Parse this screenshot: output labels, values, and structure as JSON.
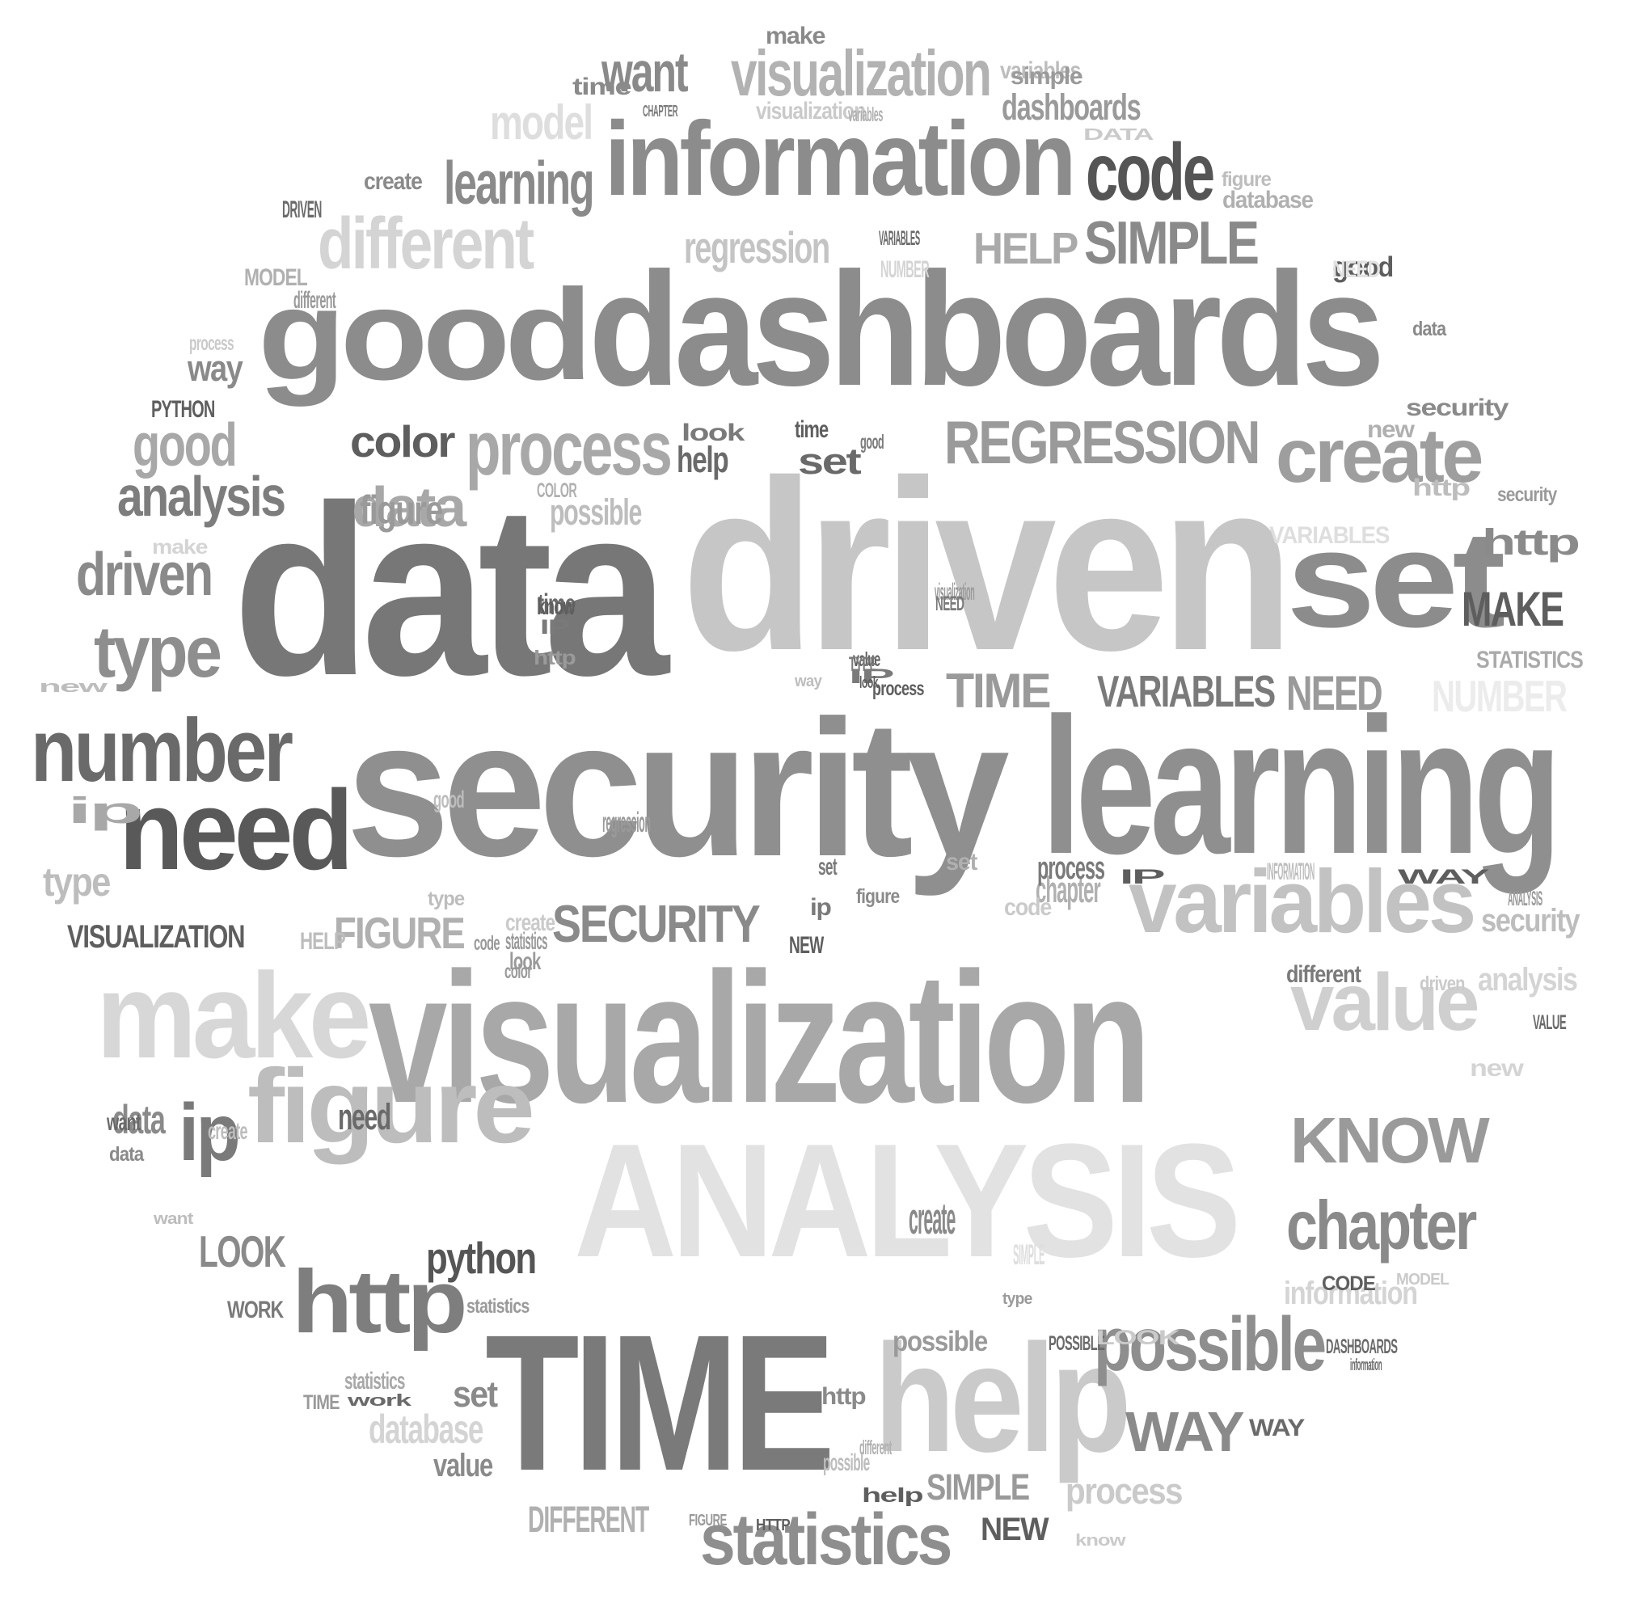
{
  "words": [
    {
      "text": "good",
      "color": "#8c8c8c"
    },
    {
      "text": "dashboards",
      "color": "#8c8c8c"
    },
    {
      "text": "data",
      "color": "#777777"
    },
    {
      "text": "driven",
      "color": "#c6c6c6"
    },
    {
      "text": "security",
      "color": "#8f8f8f"
    },
    {
      "text": "learning",
      "color": "#8f8f8f"
    },
    {
      "text": "visualization",
      "color": "#a8a8a8"
    },
    {
      "text": "ANALYSIS",
      "color": "#e2e2e2"
    },
    {
      "text": "TIME",
      "color": "#7a7a7a"
    },
    {
      "text": "help",
      "color": "#cacaca"
    },
    {
      "text": "information",
      "color": "#8c8c8c"
    },
    {
      "text": "set",
      "color": "#8c8c8c"
    },
    {
      "text": "make",
      "color": "#d7d7d7"
    },
    {
      "text": "figure",
      "color": "#bdbdbd"
    },
    {
      "text": "need",
      "color": "#595959"
    },
    {
      "text": "number",
      "color": "#6a6a6a"
    },
    {
      "text": "variables",
      "color": "#c2c2c2"
    },
    {
      "text": "value",
      "color": "#cfcfcf"
    },
    {
      "text": "http",
      "color": "#7e7e7e"
    },
    {
      "text": "create",
      "color": "#9e9e9e"
    },
    {
      "text": "different",
      "color": "#d4d4d4"
    },
    {
      "text": "process",
      "color": "#a8a8a8"
    },
    {
      "text": "REGRESSION",
      "color": "#9a9a9a"
    },
    {
      "text": "code",
      "color": "#555555"
    },
    {
      "text": "statistics",
      "color": "#8e8e8e"
    },
    {
      "text": "possible",
      "color": "#8e8e8e"
    },
    {
      "text": "KNOW",
      "color": "#9a9a9a"
    },
    {
      "text": "chapter",
      "color": "#8a8a8a"
    },
    {
      "text": "ip",
      "color": "#7a7a7a"
    },
    {
      "text": "type",
      "color": "#8e8e8e"
    },
    {
      "text": "visualization",
      "color": "#b2b2b2"
    },
    {
      "text": "SIMPLE",
      "color": "#8a8a8a"
    },
    {
      "text": "learning",
      "color": "#8a8a8a"
    },
    {
      "text": "driven",
      "color": "#8a8a8a"
    },
    {
      "text": "analysis",
      "color": "#7d7d7d"
    },
    {
      "text": "WAY",
      "color": "#8a8a8a"
    },
    {
      "text": "SECURITY",
      "color": "#8a8a8a"
    },
    {
      "text": "VARIABLES",
      "color": "#7a7a7a"
    },
    {
      "text": "good",
      "color": "#a8a8a8"
    },
    {
      "text": "data",
      "color": "#a8a8a8"
    },
    {
      "text": "want",
      "color": "#8a8a8a"
    },
    {
      "text": "regression",
      "color": "#c4c4c4"
    },
    {
      "text": "model",
      "color": "#dedede"
    },
    {
      "text": "dashboards",
      "color": "#9a9a9a"
    },
    {
      "text": "MAKE",
      "color": "#5e5e5e"
    },
    {
      "text": "NEED",
      "color": "#9a9a9a"
    },
    {
      "text": "TIME",
      "color": "#9a9a9a"
    },
    {
      "text": "HELP",
      "color": "#aaaaaa"
    },
    {
      "text": "FIGURE",
      "color": "#b0b0b0"
    },
    {
      "text": "python",
      "color": "#555555"
    },
    {
      "text": "LOOK",
      "color": "#8a8a8a"
    },
    {
      "text": "DIFFERENT",
      "color": "#b0b0b0"
    },
    {
      "text": "NUMBER",
      "color": "#ececec"
    },
    {
      "text": "VISUALIZATION",
      "color": "#5e5e5e"
    },
    {
      "text": "http",
      "color": "#8a8a8a"
    },
    {
      "text": "database",
      "color": "#d4d4d4"
    },
    {
      "text": "process",
      "color": "#cacaca"
    },
    {
      "text": "information",
      "color": "#d4d4d4"
    },
    {
      "text": "SIMPLE",
      "color": "#9a9a9a"
    },
    {
      "text": "NEW",
      "color": "#5e5e5e"
    },
    {
      "text": "chapter",
      "color": "#b0b0b0"
    },
    {
      "text": "color",
      "color": "#5e5e5e"
    },
    {
      "text": "create",
      "color": "#8a8a8a"
    },
    {
      "text": "ip",
      "color": "#a8a8a8"
    },
    {
      "text": "type",
      "color": "#bdbdbd"
    },
    {
      "text": "figure",
      "color": "#9a9a9a"
    },
    {
      "text": "data",
      "color": "#8a8a8a"
    },
    {
      "text": "need",
      "color": "#6a6a6a"
    },
    {
      "text": "set",
      "color": "#8a8a8a"
    },
    {
      "text": "value",
      "color": "#8a8a8a"
    },
    {
      "text": "possible",
      "color": "#9a9a9a"
    },
    {
      "text": "process",
      "color": "#7a7a7a"
    },
    {
      "text": "security",
      "color": "#bdbdbd"
    },
    {
      "text": "analysis",
      "color": "#d4d4d4"
    },
    {
      "text": "STATISTICS",
      "color": "#aaaaaa"
    },
    {
      "text": "VARIABLES",
      "color": "#dedede"
    },
    {
      "text": "help",
      "color": "#6a6a6a"
    },
    {
      "text": "way",
      "color": "#8a8a8a"
    },
    {
      "text": "set",
      "color": "#6a6a6a"
    },
    {
      "text": "possible",
      "color": "#bdbdbd"
    },
    {
      "text": "statistics",
      "color": "#a8a8a8"
    },
    {
      "text": "time",
      "color": "#6a6a6a"
    },
    {
      "text": "different",
      "color": "#7a7a7a"
    },
    {
      "text": "database",
      "color": "#b0b0b0"
    },
    {
      "text": "variables",
      "color": "#bdbdbd"
    },
    {
      "text": "visualization",
      "color": "#cacaca"
    },
    {
      "text": "security",
      "color": "#8a8a8a"
    },
    {
      "text": "create",
      "color": "#8a8a8a"
    },
    {
      "text": "good",
      "color": "#5e5e5e"
    },
    {
      "text": "http",
      "color": "#bdbdbd"
    },
    {
      "text": "security",
      "color": "#9a9a9a"
    },
    {
      "text": "visualization",
      "color": "#9a9a9a"
    },
    {
      "text": "value",
      "color": "#5e5e5e"
    },
    {
      "text": "know",
      "color": "#5e5e5e"
    },
    {
      "text": "IP",
      "color": "#7a7a7a"
    },
    {
      "text": "look",
      "color": "#7a7a7a"
    },
    {
      "text": "time",
      "color": "#5e5e5e"
    },
    {
      "text": "new",
      "color": "#b0b0b0"
    },
    {
      "text": "COLOR",
      "color": "#b0b0b0"
    },
    {
      "text": "new",
      "color": "#d4d4d4"
    },
    {
      "text": "make",
      "color": "#d4d4d4"
    },
    {
      "text": "process",
      "color": "#cacaca"
    },
    {
      "text": "PYTHON",
      "color": "#5e5e5e"
    },
    {
      "text": "MODEL",
      "color": "#b0b0b0"
    },
    {
      "text": "DRIVEN",
      "color": "#6a6a6a"
    },
    {
      "text": "different",
      "color": "#9a9a9a"
    },
    {
      "text": "time",
      "color": "#8a8a8a"
    },
    {
      "text": "make",
      "color": "#8a8a8a"
    },
    {
      "text": "simple",
      "color": "#9a9a9a"
    },
    {
      "text": "CHAPTER",
      "color": "#7a7a7a"
    },
    {
      "text": "variables",
      "color": "#b0b0b0"
    },
    {
      "text": "DATA",
      "color": "#cacaca"
    },
    {
      "text": "figure",
      "color": "#bdbdbd"
    },
    {
      "text": "VARIABLES",
      "color": "#6a6a6a"
    },
    {
      "text": "NUMBER",
      "color": "#d4d4d4"
    },
    {
      "text": "NEED",
      "color": "#e2e2e2"
    },
    {
      "text": "data",
      "color": "#8a8a8a"
    },
    {
      "text": "good",
      "color": "#7a7a7a"
    },
    {
      "text": "NEED",
      "color": "#7a7a7a"
    },
    {
      "text": "way",
      "color": "#bdbdbd"
    },
    {
      "text": "IP",
      "color": "#7a7a7a"
    },
    {
      "text": "TYPE",
      "color": "#7a7a7a"
    },
    {
      "text": "process",
      "color": "#5e5e5e"
    },
    {
      "text": "look",
      "color": "#5e5e5e"
    },
    {
      "text": "http",
      "color": "#9a9a9a"
    },
    {
      "text": "new",
      "color": "#bdbdbd"
    },
    {
      "text": "good",
      "color": "#bdbdbd"
    },
    {
      "text": "regression",
      "color": "#9a9a9a"
    },
    {
      "text": "set",
      "color": "#b0b0b0"
    },
    {
      "text": "code",
      "color": "#cacaca"
    },
    {
      "text": "type",
      "color": "#bdbdbd"
    },
    {
      "text": "figure",
      "color": "#8a8a8a"
    },
    {
      "text": "HELP",
      "color": "#bdbdbd"
    },
    {
      "text": "statistics",
      "color": "#9a9a9a"
    },
    {
      "text": "create",
      "color": "#cacaca"
    },
    {
      "text": "look",
      "color": "#9a9a9a"
    },
    {
      "text": "color",
      "color": "#9a9a9a"
    },
    {
      "text": "code",
      "color": "#9a9a9a"
    },
    {
      "text": "NEW",
      "color": "#5e5e5e"
    },
    {
      "text": "set",
      "color": "#7a7a7a"
    },
    {
      "text": "ip",
      "color": "#7a7a7a"
    },
    {
      "text": "IP",
      "color": "#5e5e5e"
    },
    {
      "text": "INFORMATION",
      "color": "#bdbdbd"
    },
    {
      "text": "WAY",
      "color": "#5e5e5e"
    },
    {
      "text": "ANALYSIS",
      "color": "#9a9a9a"
    },
    {
      "text": "driven",
      "color": "#cacaca"
    },
    {
      "text": "VALUE",
      "color": "#6a6a6a"
    },
    {
      "text": "want",
      "color": "#6a6a6a"
    },
    {
      "text": "data",
      "color": "#8a8a8a"
    },
    {
      "text": "create",
      "color": "#bdbdbd"
    },
    {
      "text": "want",
      "color": "#bdbdbd"
    },
    {
      "text": "WORK",
      "color": "#7a7a7a"
    },
    {
      "text": "TIME",
      "color": "#9a9a9a"
    },
    {
      "text": "work",
      "color": "#6a6a6a"
    },
    {
      "text": "statistics",
      "color": "#9a9a9a"
    },
    {
      "text": "SIMPLE",
      "color": "#dedede"
    },
    {
      "text": "type",
      "color": "#9a9a9a"
    },
    {
      "text": "CODE",
      "color": "#5e5e5e"
    },
    {
      "text": "MODEL",
      "color": "#cacaca"
    },
    {
      "text": "POSSIBLE",
      "color": "#6a6a6a"
    },
    {
      "text": "LOOK",
      "color": "#cacaca"
    },
    {
      "text": "DASHBOARDS",
      "color": "#6a6a6a"
    },
    {
      "text": "information",
      "color": "#6a6a6a"
    },
    {
      "text": "WAY",
      "color": "#6a6a6a"
    },
    {
      "text": "possible",
      "color": "#bdbdbd"
    },
    {
      "text": "help",
      "color": "#5e5e5e"
    },
    {
      "text": "FIGURE",
      "color": "#9a9a9a"
    },
    {
      "text": "HTTP",
      "color": "#5e5e5e"
    },
    {
      "text": "know",
      "color": "#cacaca"
    },
    {
      "text": "different",
      "color": "#b0b0b0"
    },
    {
      "text": "http",
      "color": "#8a8a8a"
    },
    {
      "text": "ip",
      "color": "#9a9a9a"
    }
  ]
}
